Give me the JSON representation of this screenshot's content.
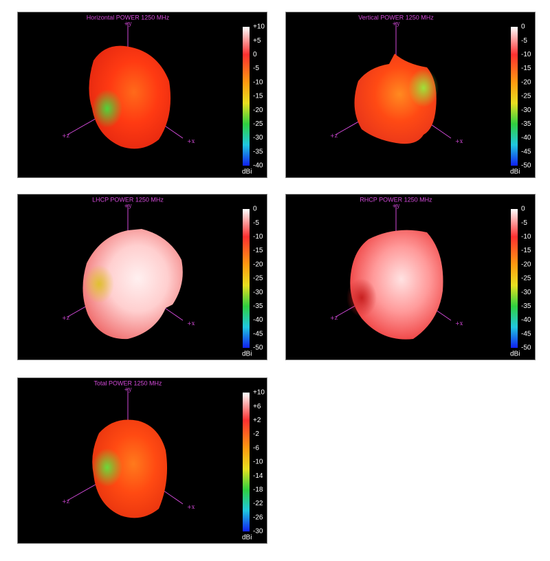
{
  "panels": [
    {
      "title": "Horizontal POWER 1250  MHz",
      "axes": [
        "+y",
        "+x",
        "+z"
      ],
      "colorbar": {
        "ticks": [
          "+10",
          "+5",
          "0",
          "-5",
          "-10",
          "-15",
          "-20",
          "-25",
          "-30",
          "-35",
          "-40"
        ],
        "unit": "dBi"
      }
    },
    {
      "title": "Vertical POWER 1250  MHz",
      "axes": [
        "+y",
        "+x",
        "+z"
      ],
      "colorbar": {
        "ticks": [
          "0",
          "-5",
          "-10",
          "-15",
          "-20",
          "-25",
          "-30",
          "-35",
          "-40",
          "-45",
          "-50"
        ],
        "unit": "dBi"
      }
    },
    {
      "title": "LHCP POWER 1250  MHz",
      "axes": [
        "+y",
        "+x",
        "+z"
      ],
      "colorbar": {
        "ticks": [
          "0",
          "-5",
          "-10",
          "-15",
          "-20",
          "-25",
          "-30",
          "-35",
          "-40",
          "-45",
          "-50"
        ],
        "unit": "dBi"
      }
    },
    {
      "title": "RHCP POWER 1250  MHz",
      "axes": [
        "+y",
        "+x",
        "+z"
      ],
      "colorbar": {
        "ticks": [
          "0",
          "-5",
          "-10",
          "-15",
          "-20",
          "-25",
          "-30",
          "-35",
          "-40",
          "-45",
          "-50"
        ],
        "unit": "dBi"
      }
    },
    {
      "title": "Total POWER 1250  MHz",
      "axes": [
        "+y",
        "+x",
        "+z"
      ],
      "colorbar": {
        "ticks": [
          "+10",
          "+6",
          "+2",
          "-2",
          "-6",
          "-10",
          "-14",
          "-18",
          "-22",
          "-26",
          "-30"
        ],
        "unit": "dBi"
      }
    }
  ]
}
